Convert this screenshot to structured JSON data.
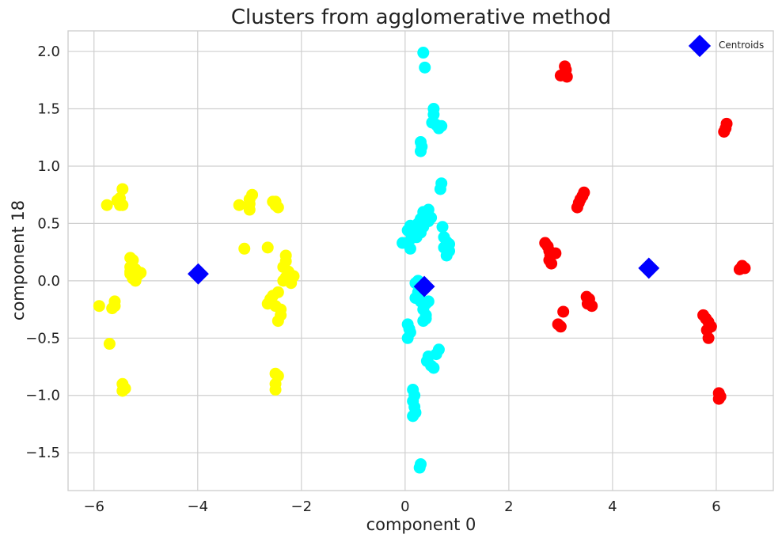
{
  "chart_data": {
    "type": "scatter",
    "title": "Clusters from agglomerative method",
    "xlabel": "component 0",
    "ylabel": "component 18",
    "xlim": [
      -6.5,
      7.1
    ],
    "ylim": [
      -1.83,
      2.18
    ],
    "xticks": [
      -6,
      -4,
      -2,
      0,
      2,
      4,
      6
    ],
    "yticks": [
      -1.5,
      -1.0,
      -0.5,
      0.0,
      0.5,
      1.0,
      1.5,
      2.0
    ],
    "xtick_labels": [
      "−6",
      "−4",
      "−2",
      "0",
      "2",
      "4",
      "6"
    ],
    "ytick_labels": [
      "−1.5",
      "−1.0",
      "−0.5",
      "0.0",
      "0.5",
      "1.0",
      "1.5",
      "2.0"
    ],
    "grid": true,
    "legend_position": "top-right",
    "legend": [
      {
        "label": "Centroids",
        "color": "#0000ff",
        "marker": "diamond"
      }
    ],
    "series": [
      {
        "color": "#ffff00",
        "points": [
          [
            -5.45,
            0.8
          ],
          [
            -5.5,
            0.72
          ],
          [
            -5.55,
            0.7
          ],
          [
            -5.5,
            0.66
          ],
          [
            -5.45,
            0.66
          ],
          [
            -5.75,
            0.66
          ],
          [
            -5.3,
            0.2
          ],
          [
            -5.25,
            0.18
          ],
          [
            -5.3,
            0.12
          ],
          [
            -5.2,
            0.1
          ],
          [
            -5.3,
            0.06
          ],
          [
            -5.15,
            0.05
          ],
          [
            -5.25,
            0.02
          ],
          [
            -5.2,
            0.0
          ],
          [
            -5.3,
            0.08
          ],
          [
            -5.1,
            0.07
          ],
          [
            -5.9,
            -0.22
          ],
          [
            -5.6,
            -0.18
          ],
          [
            -5.6,
            -0.22
          ],
          [
            -5.65,
            -0.24
          ],
          [
            -5.7,
            -0.55
          ],
          [
            -5.45,
            -0.9
          ],
          [
            -5.4,
            -0.94
          ],
          [
            -5.45,
            -0.96
          ],
          [
            -3.2,
            0.66
          ],
          [
            -2.95,
            0.75
          ],
          [
            -3.0,
            0.71
          ],
          [
            -3.0,
            0.67
          ],
          [
            -3.0,
            0.62
          ],
          [
            -2.55,
            0.69
          ],
          [
            -2.5,
            0.66
          ],
          [
            -2.45,
            0.64
          ],
          [
            -2.5,
            0.69
          ],
          [
            -3.1,
            0.28
          ],
          [
            -2.65,
            0.29
          ],
          [
            -2.3,
            0.22
          ],
          [
            -2.3,
            0.17
          ],
          [
            -2.35,
            0.12
          ],
          [
            -2.25,
            0.08
          ],
          [
            -2.2,
            0.05
          ],
          [
            -2.3,
            0.03
          ],
          [
            -2.15,
            0.04
          ],
          [
            -2.35,
            0.0
          ],
          [
            -2.2,
            -0.02
          ],
          [
            -2.45,
            -0.1
          ],
          [
            -2.55,
            -0.13
          ],
          [
            -2.6,
            -0.16
          ],
          [
            -2.65,
            -0.2
          ],
          [
            -2.5,
            -0.22
          ],
          [
            -2.4,
            -0.25
          ],
          [
            -2.4,
            -0.3
          ],
          [
            -2.45,
            -0.35
          ],
          [
            -2.5,
            -0.81
          ],
          [
            -2.45,
            -0.83
          ],
          [
            -2.5,
            -0.9
          ],
          [
            -2.5,
            -0.95
          ]
        ]
      },
      {
        "color": "#00ffff",
        "points": [
          [
            0.35,
            1.99
          ],
          [
            0.38,
            1.86
          ],
          [
            0.55,
            1.5
          ],
          [
            0.55,
            1.45
          ],
          [
            0.52,
            1.38
          ],
          [
            0.6,
            1.36
          ],
          [
            0.65,
            1.33
          ],
          [
            0.7,
            1.35
          ],
          [
            0.3,
            1.21
          ],
          [
            0.32,
            1.17
          ],
          [
            0.3,
            1.13
          ],
          [
            0.7,
            0.85
          ],
          [
            0.68,
            0.8
          ],
          [
            0.35,
            0.6
          ],
          [
            0.45,
            0.62
          ],
          [
            0.4,
            0.58
          ],
          [
            0.5,
            0.55
          ],
          [
            0.3,
            0.54
          ],
          [
            0.45,
            0.52
          ],
          [
            0.25,
            0.5
          ],
          [
            0.1,
            0.48
          ],
          [
            0.2,
            0.45
          ],
          [
            0.05,
            0.44
          ],
          [
            0.35,
            0.47
          ],
          [
            0.3,
            0.42
          ],
          [
            0.15,
            0.4
          ],
          [
            0.22,
            0.38
          ],
          [
            0.12,
            0.37
          ],
          [
            -0.05,
            0.33
          ],
          [
            0.1,
            0.28
          ],
          [
            0.72,
            0.47
          ],
          [
            0.75,
            0.38
          ],
          [
            0.8,
            0.34
          ],
          [
            0.85,
            0.32
          ],
          [
            0.75,
            0.29
          ],
          [
            0.85,
            0.26
          ],
          [
            0.8,
            0.22
          ],
          [
            0.25,
            0.0
          ],
          [
            0.2,
            -0.02
          ],
          [
            0.3,
            -0.06
          ],
          [
            0.25,
            -0.1
          ],
          [
            0.2,
            -0.15
          ],
          [
            0.3,
            -0.18
          ],
          [
            0.4,
            -0.2
          ],
          [
            0.45,
            -0.18
          ],
          [
            0.35,
            -0.25
          ],
          [
            0.4,
            -0.3
          ],
          [
            0.35,
            -0.35
          ],
          [
            0.4,
            -0.33
          ],
          [
            0.05,
            -0.38
          ],
          [
            0.08,
            -0.42
          ],
          [
            0.1,
            -0.45
          ],
          [
            0.05,
            -0.5
          ],
          [
            0.65,
            -0.6
          ],
          [
            0.6,
            -0.64
          ],
          [
            0.45,
            -0.66
          ],
          [
            0.42,
            -0.7
          ],
          [
            0.5,
            -0.74
          ],
          [
            0.55,
            -0.76
          ],
          [
            0.15,
            -0.95
          ],
          [
            0.18,
            -1.0
          ],
          [
            0.15,
            -1.05
          ],
          [
            0.18,
            -1.1
          ],
          [
            0.2,
            -1.15
          ],
          [
            0.15,
            -1.18
          ],
          [
            0.3,
            -1.6
          ],
          [
            0.28,
            -1.63
          ]
        ]
      },
      {
        "color": "#ff0000",
        "points": [
          [
            3.08,
            1.87
          ],
          [
            3.1,
            1.84
          ],
          [
            3.05,
            1.8
          ],
          [
            3.0,
            1.79
          ],
          [
            3.12,
            1.78
          ],
          [
            6.2,
            1.37
          ],
          [
            6.18,
            1.33
          ],
          [
            6.15,
            1.3
          ],
          [
            3.45,
            0.77
          ],
          [
            3.42,
            0.74
          ],
          [
            3.38,
            0.71
          ],
          [
            3.35,
            0.68
          ],
          [
            3.32,
            0.64
          ],
          [
            2.7,
            0.33
          ],
          [
            2.75,
            0.3
          ],
          [
            2.78,
            0.26
          ],
          [
            2.8,
            0.22
          ],
          [
            2.9,
            0.24
          ],
          [
            2.78,
            0.18
          ],
          [
            2.82,
            0.15
          ],
          [
            6.5,
            0.13
          ],
          [
            6.55,
            0.11
          ],
          [
            6.45,
            0.1
          ],
          [
            3.5,
            -0.14
          ],
          [
            3.55,
            -0.16
          ],
          [
            3.52,
            -0.2
          ],
          [
            3.6,
            -0.22
          ],
          [
            3.05,
            -0.27
          ],
          [
            2.95,
            -0.38
          ],
          [
            3.0,
            -0.4
          ],
          [
            5.75,
            -0.3
          ],
          [
            5.8,
            -0.33
          ],
          [
            5.85,
            -0.36
          ],
          [
            5.9,
            -0.4
          ],
          [
            5.82,
            -0.43
          ],
          [
            5.85,
            -0.5
          ],
          [
            6.05,
            -0.98
          ],
          [
            6.08,
            -1.01
          ],
          [
            6.05,
            -1.03
          ]
        ]
      }
    ],
    "centroids": {
      "name": "Centroids",
      "color": "#0000ff",
      "marker": "diamond",
      "points": [
        [
          -3.99,
          0.06
        ],
        [
          0.37,
          -0.05
        ],
        [
          4.7,
          0.11
        ]
      ]
    }
  }
}
